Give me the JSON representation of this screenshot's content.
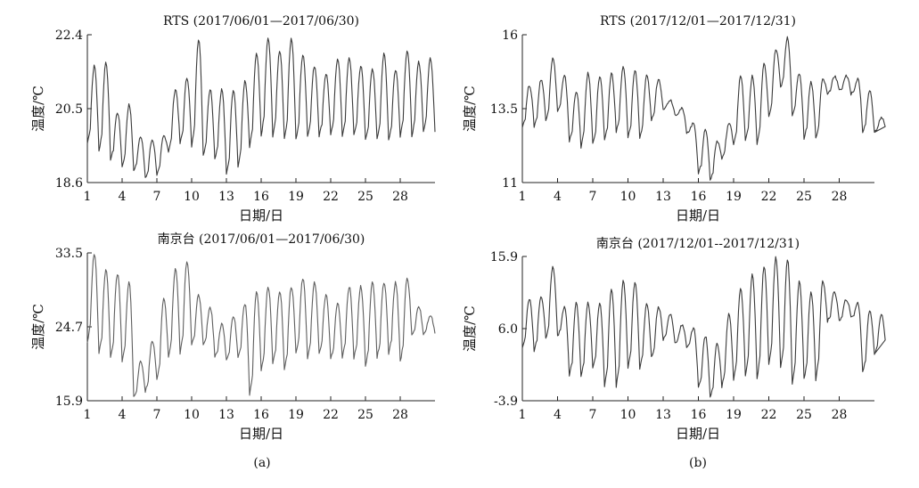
{
  "panel_labels": [
    "(a)",
    "(b)"
  ],
  "chart_data": [
    {
      "type": "line",
      "title": "RTS (2017/06/01—2017/06/30)",
      "xlabel": "日期/日",
      "ylabel": "温度/℃",
      "xlim": [
        1,
        31
      ],
      "ylim": [
        18.6,
        22.4
      ],
      "xticks": [
        "1",
        "4",
        "7",
        "10",
        "13",
        "16",
        "19",
        "22",
        "25",
        "28"
      ],
      "yticks": [
        "18.6",
        "20.5",
        "22.4"
      ],
      "grid": false,
      "color": "#3a3a3a",
      "daily_min": [
        19.6,
        19.4,
        19.2,
        19.0,
        18.9,
        18.7,
        18.8,
        19.4,
        19.6,
        19.5,
        19.3,
        19.2,
        18.8,
        19.0,
        19.5,
        19.8,
        19.8,
        19.7,
        19.7,
        19.8,
        19.8,
        19.8,
        19.8,
        19.8,
        19.7,
        19.7,
        19.7,
        19.8,
        19.8,
        19.9
      ],
      "daily_max": [
        21.6,
        21.7,
        20.4,
        20.6,
        19.8,
        19.7,
        19.8,
        21.0,
        21.3,
        22.3,
        21.0,
        21.0,
        21.0,
        21.2,
        21.9,
        22.3,
        22.0,
        22.3,
        21.9,
        21.6,
        21.4,
        21.8,
        21.8,
        21.6,
        21.5,
        21.9,
        21.5,
        22.0,
        21.7,
        21.8
      ],
      "series": [
        {
          "values_per_day": "daily_min/daily_max"
        }
      ]
    },
    {
      "type": "line",
      "title": "RTS (2017/12/01—2017/12/31)",
      "xlabel": "日期/日",
      "ylabel": "温度/℃",
      "xlim": [
        1,
        31
      ],
      "ylim": [
        11,
        16
      ],
      "xticks": [
        "1",
        "4",
        "7",
        "10",
        "13",
        "16",
        "19",
        "22",
        "25",
        "28"
      ],
      "yticks": [
        "11",
        "13.5",
        "16"
      ],
      "grid": false,
      "color": "#3a3a3a",
      "daily_min": [
        12.9,
        12.9,
        13.1,
        13.4,
        12.4,
        12.2,
        12.3,
        12.4,
        12.7,
        12.5,
        12.5,
        13.1,
        13.5,
        13.3,
        12.7,
        11.3,
        11.1,
        11.8,
        12.3,
        12.4,
        12.3,
        13.2,
        14.2,
        13.3,
        12.5,
        12.5,
        14.0,
        14.1,
        14.0,
        12.7,
        12.7
      ],
      "daily_max": [
        14.3,
        14.5,
        15.2,
        14.6,
        14.1,
        14.7,
        14.6,
        14.7,
        14.9,
        14.8,
        14.6,
        14.5,
        13.8,
        13.5,
        13.0,
        12.8,
        12.4,
        13.0,
        14.6,
        14.6,
        15.0,
        15.5,
        15.9,
        14.7,
        14.4,
        14.5,
        14.6,
        14.6,
        14.5,
        14.1,
        13.2
      ]
    },
    {
      "type": "line",
      "title": "南京台 (2017/06/01—2017/06/30)",
      "xlabel": "日期/日",
      "ylabel": "温度/℃",
      "xlim": [
        1,
        31
      ],
      "ylim": [
        15.9,
        33.5
      ],
      "xticks": [
        "1",
        "4",
        "7",
        "10",
        "13",
        "16",
        "19",
        "22",
        "25",
        "28"
      ],
      "yticks": [
        "15.9",
        "24.7",
        "33.5"
      ],
      "grid": false,
      "color": "#5e5e5e",
      "daily_min": [
        22.8,
        21.5,
        21.0,
        20.5,
        16.3,
        17.0,
        18.5,
        21.0,
        21.5,
        22.5,
        22.6,
        21.2,
        20.7,
        21.0,
        16.5,
        19.5,
        20.3,
        19.5,
        21.5,
        21.0,
        21.5,
        20.8,
        21.0,
        21.0,
        20.0,
        21.0,
        21.5,
        20.5,
        23.6,
        23.9
      ],
      "daily_max": [
        33.4,
        31.5,
        31.0,
        30.0,
        20.5,
        23.0,
        28.0,
        31.5,
        32.5,
        28.5,
        27.0,
        25.0,
        26.0,
        27.5,
        29.0,
        29.5,
        29.0,
        29.5,
        30.5,
        30.0,
        28.5,
        27.5,
        29.5,
        29.5,
        30.0,
        30.0,
        30.0,
        30.5,
        27.0,
        26.0
      ]
    },
    {
      "type": "line",
      "title": "南京台 (2017/12/01--2017/12/31)",
      "xlabel": "日期/日",
      "ylabel": "温度/℃",
      "xlim": [
        1,
        31
      ],
      "ylim": [
        -3.9,
        15.9
      ],
      "xticks": [
        "1",
        "4",
        "7",
        "10",
        "13",
        "16",
        "19",
        "22",
        "25",
        "28"
      ],
      "yticks": [
        "-3.9",
        "6.0",
        "15.9"
      ],
      "grid": false,
      "color": "#3a3a3a",
      "daily_min": [
        3.5,
        3.0,
        4.5,
        5.0,
        -0.5,
        -0.5,
        0.5,
        -2.0,
        -2.0,
        0.5,
        0.5,
        2.0,
        4.5,
        4.0,
        3.5,
        -2.0,
        -3.5,
        -2.0,
        -1.0,
        -0.5,
        -1.0,
        1.0,
        0.5,
        -1.5,
        -1.0,
        -1.0,
        7.0,
        7.0,
        7.5,
        0.0,
        2.5
      ],
      "daily_max": [
        10.0,
        10.5,
        14.5,
        9.0,
        9.5,
        9.5,
        9.5,
        11.5,
        12.5,
        12.5,
        9.5,
        9.0,
        8.0,
        6.5,
        6.0,
        5.0,
        4.0,
        8.0,
        11.5,
        13.5,
        14.5,
        15.8,
        15.5,
        12.5,
        11.0,
        12.5,
        11.0,
        10.0,
        9.5,
        8.5,
        8.0
      ]
    }
  ]
}
